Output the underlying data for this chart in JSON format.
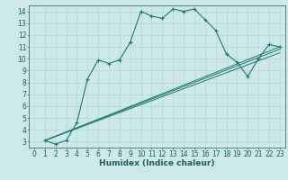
{
  "title": "",
  "xlabel": "Humidex (Indice chaleur)",
  "ylabel": "",
  "bg_color": "#cce8e8",
  "line_color": "#1a7a6e",
  "xlim": [
    -0.5,
    23.5
  ],
  "ylim": [
    2.5,
    14.5
  ],
  "xticks": [
    0,
    1,
    2,
    3,
    4,
    5,
    6,
    7,
    8,
    9,
    10,
    11,
    12,
    13,
    14,
    15,
    16,
    17,
    18,
    19,
    20,
    21,
    22,
    23
  ],
  "yticks": [
    3,
    4,
    5,
    6,
    7,
    8,
    9,
    10,
    11,
    12,
    13,
    14
  ],
  "curve1_x": [
    1,
    2,
    3,
    4,
    5,
    6,
    7,
    8,
    9,
    10,
    11,
    12,
    13,
    14,
    15,
    16,
    17,
    18,
    19,
    20,
    21,
    22,
    23
  ],
  "curve1_y": [
    3.1,
    2.8,
    3.1,
    4.6,
    8.3,
    9.9,
    9.6,
    9.9,
    11.4,
    14.0,
    13.6,
    13.4,
    14.2,
    14.0,
    14.2,
    13.3,
    12.4,
    10.4,
    9.7,
    8.5,
    10.0,
    11.2,
    11.0
  ],
  "line1_x": [
    1,
    23
  ],
  "line1_y": [
    3.1,
    11.0
  ],
  "line2_x": [
    1,
    23
  ],
  "line2_y": [
    3.1,
    10.8
  ],
  "line3_x": [
    1,
    23
  ],
  "line3_y": [
    3.1,
    10.5
  ],
  "grid_color": "#aad4d4",
  "font_color": "#1a5f5f",
  "fontsize_ticks": 5.5,
  "fontsize_label": 6.5
}
